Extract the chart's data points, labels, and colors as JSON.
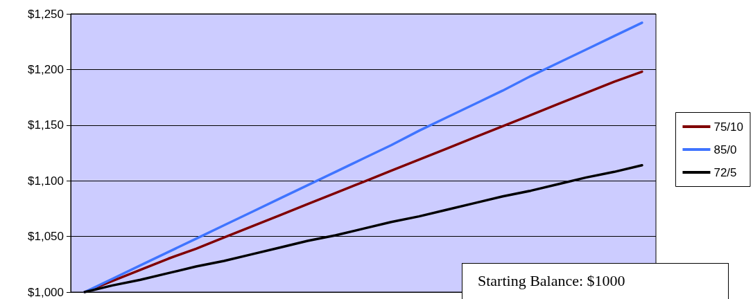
{
  "chart_data": {
    "type": "line",
    "categories": [
      null,
      null,
      null,
      null,
      null,
      null,
      null,
      null,
      null,
      null,
      null,
      null,
      null,
      null,
      null,
      null,
      null,
      null,
      null,
      null,
      null
    ],
    "series": [
      {
        "name": "75/10",
        "color": "#800000",
        "values": [
          1000,
          1010,
          1020,
          1030,
          1039,
          1049,
          1059,
          1069,
          1079,
          1089,
          1099,
          1109,
          1119,
          1129,
          1139,
          1149,
          1159,
          1169,
          1179,
          1189,
          1198
        ]
      },
      {
        "name": "85/0",
        "color": "#3f74ff",
        "values": [
          1000,
          1012,
          1024,
          1036,
          1048,
          1060,
          1072,
          1084,
          1096,
          1108,
          1120,
          1132,
          1145,
          1157,
          1169,
          1181,
          1194,
          1206,
          1218,
          1230,
          1242
        ]
      },
      {
        "name": "72/5",
        "color": "#000000",
        "values": [
          1000,
          1006,
          1011,
          1017,
          1023,
          1028,
          1034,
          1040,
          1046,
          1051,
          1057,
          1063,
          1068,
          1074,
          1080,
          1086,
          1091,
          1097,
          1103,
          1108,
          1114
        ]
      }
    ],
    "ylim": [
      1000,
      1250
    ],
    "yticks": [
      {
        "value": 1000,
        "label": "$1,000"
      },
      {
        "value": 1050,
        "label": "$1,050"
      },
      {
        "value": 1100,
        "label": "$1,100"
      },
      {
        "value": 1150,
        "label": "$1,150"
      },
      {
        "value": 1200,
        "label": "$1,200"
      },
      {
        "value": 1250,
        "label": "$1,250"
      }
    ],
    "grid": "y",
    "legend": "right",
    "marker": "none",
    "line_style": "solid",
    "annotations": [
      "Starting Balance: $1000"
    ]
  }
}
